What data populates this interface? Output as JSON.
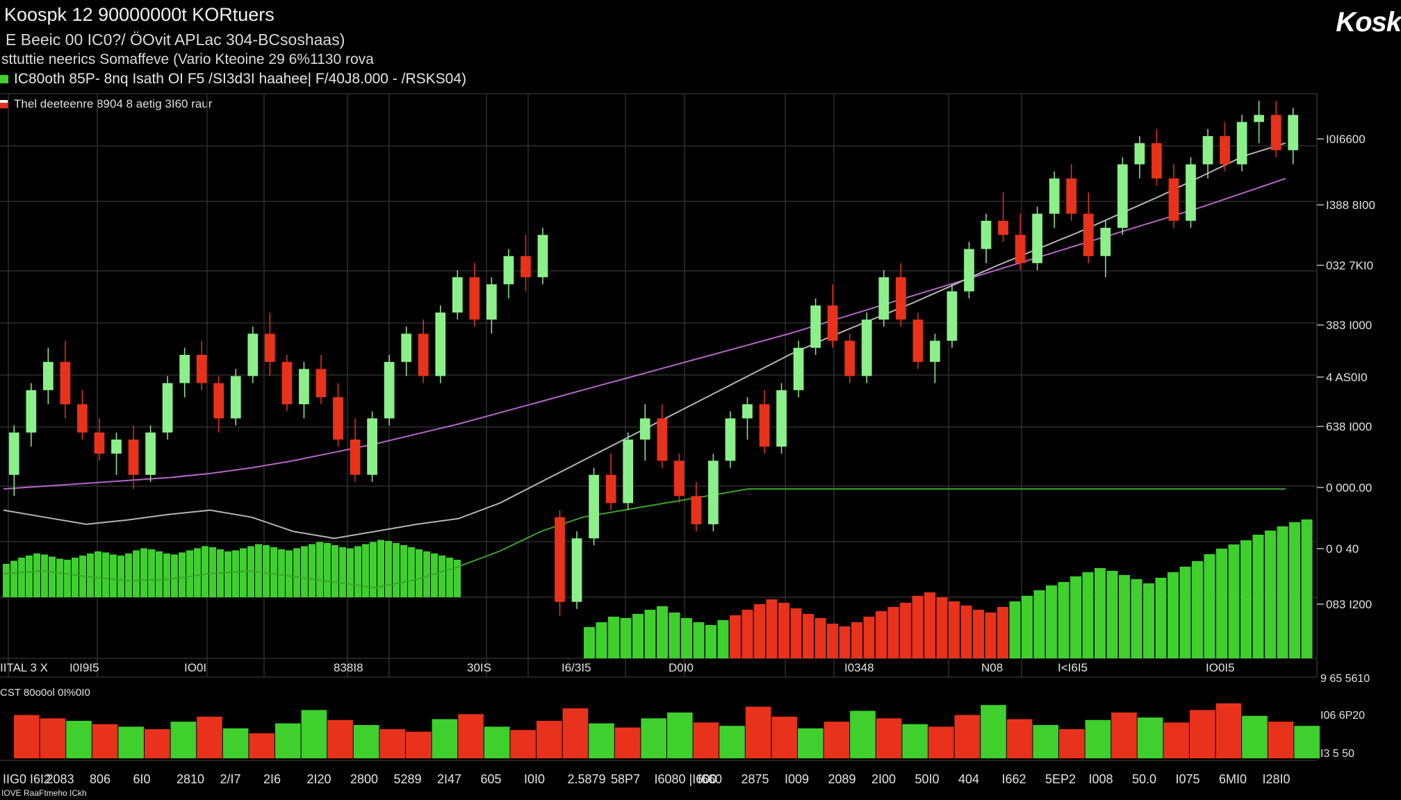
{
  "header": {
    "title": "Koospk 12  90000000t KORtuers",
    "subtitle1": "E Beeic 00 IC0?/ ÖOvit  APLac  304-BCsoshaas)",
    "subtitle2": "sttuttie  neerics  Somaffeve  (Vario  Kteoine  29 6%1130 rova",
    "legend_main": "IC80oth  85P-  8nq  Isath  OI  F5  /SI3d3I  haahee|  F/40J8.000 - /RSKS04)",
    "legend_secondary": "Thel deeteenre 8904 8 aetig 3I60 raur",
    "brand": "Kosk"
  },
  "colors": {
    "background": "#000000",
    "up": "#3fd02e",
    "up_light": "#8cf08a",
    "down": "#e8321c",
    "grid": "#2e2e2e",
    "ma_purple": "#b567c8",
    "ma_grey": "#b5b5b5",
    "ma_green": "#3aa52a"
  },
  "chart_data": [
    {
      "type": "candlestick",
      "title": "",
      "y_ticks_right": [
        "I0I6600",
        "I388 8I00",
        "032 7KI0",
        "383 I000",
        "4 AS0I0",
        "638 I000",
        "0 000.00",
        "0 0 40",
        "083 I200"
      ],
      "x_ticks": [
        "IITAL 3 X",
        "I0I9I5",
        "IO0I",
        "838I8",
        "30IS",
        "I6/3I5",
        "D0I0",
        "I0348",
        "N08",
        "I<I6I5",
        "IO0I5"
      ],
      "candles": [
        {
          "o": 8300,
          "h": 8650,
          "l": 8150,
          "c": 8600
        },
        {
          "o": 8600,
          "h": 8950,
          "l": 8500,
          "c": 8900
        },
        {
          "o": 8900,
          "h": 9200,
          "l": 8800,
          "c": 9100
        },
        {
          "o": 9100,
          "h": 9250,
          "l": 8700,
          "c": 8800
        },
        {
          "o": 8800,
          "h": 8900,
          "l": 8550,
          "c": 8600
        },
        {
          "o": 8600,
          "h": 8700,
          "l": 8400,
          "c": 8450
        },
        {
          "o": 8450,
          "h": 8600,
          "l": 8300,
          "c": 8550
        },
        {
          "o": 8550,
          "h": 8650,
          "l": 8200,
          "c": 8300
        },
        {
          "o": 8300,
          "h": 8650,
          "l": 8250,
          "c": 8600
        },
        {
          "o": 8600,
          "h": 9000,
          "l": 8550,
          "c": 8950
        },
        {
          "o": 8950,
          "h": 9200,
          "l": 8850,
          "c": 9150
        },
        {
          "o": 9150,
          "h": 9250,
          "l": 8900,
          "c": 8950
        },
        {
          "o": 8950,
          "h": 9000,
          "l": 8600,
          "c": 8700
        },
        {
          "o": 8700,
          "h": 9050,
          "l": 8650,
          "c": 9000
        },
        {
          "o": 9000,
          "h": 9350,
          "l": 8950,
          "c": 9300
        },
        {
          "o": 9300,
          "h": 9450,
          "l": 9000,
          "c": 9100
        },
        {
          "o": 9100,
          "h": 9150,
          "l": 8750,
          "c": 8800
        },
        {
          "o": 8800,
          "h": 9100,
          "l": 8700,
          "c": 9050
        },
        {
          "o": 9050,
          "h": 9150,
          "l": 8800,
          "c": 8850
        },
        {
          "o": 8850,
          "h": 8950,
          "l": 8500,
          "c": 8550
        },
        {
          "o": 8550,
          "h": 8700,
          "l": 8250,
          "c": 8300
        },
        {
          "o": 8300,
          "h": 8750,
          "l": 8250,
          "c": 8700
        },
        {
          "o": 8700,
          "h": 9150,
          "l": 8650,
          "c": 9100
        },
        {
          "o": 9100,
          "h": 9350,
          "l": 9000,
          "c": 9300
        },
        {
          "o": 9300,
          "h": 9400,
          "l": 8950,
          "c": 9000
        },
        {
          "o": 9000,
          "h": 9500,
          "l": 8950,
          "c": 9450
        },
        {
          "o": 9450,
          "h": 9750,
          "l": 9400,
          "c": 9700
        },
        {
          "o": 9700,
          "h": 9800,
          "l": 9350,
          "c": 9400
        },
        {
          "o": 9400,
          "h": 9700,
          "l": 9300,
          "c": 9650
        },
        {
          "o": 9650,
          "h": 9900,
          "l": 9550,
          "c": 9850
        },
        {
          "o": 9850,
          "h": 10000,
          "l": 9600,
          "c": 9700
        },
        {
          "o": 9700,
          "h": 10050,
          "l": 9650,
          "c": 10000
        },
        {
          "o": 8000,
          "h": 8050,
          "l": 7300,
          "c": 7400
        },
        {
          "o": 7400,
          "h": 7900,
          "l": 7350,
          "c": 7850
        },
        {
          "o": 7850,
          "h": 8350,
          "l": 7800,
          "c": 8300
        },
        {
          "o": 8300,
          "h": 8450,
          "l": 8050,
          "c": 8100
        },
        {
          "o": 8100,
          "h": 8600,
          "l": 8050,
          "c": 8550
        },
        {
          "o": 8550,
          "h": 8800,
          "l": 8400,
          "c": 8700
        },
        {
          "o": 8700,
          "h": 8800,
          "l": 8350,
          "c": 8400
        },
        {
          "o": 8400,
          "h": 8450,
          "l": 8100,
          "c": 8150
        },
        {
          "o": 8150,
          "h": 8250,
          "l": 7900,
          "c": 7950
        },
        {
          "o": 7950,
          "h": 8450,
          "l": 7900,
          "c": 8400
        },
        {
          "o": 8400,
          "h": 8750,
          "l": 8350,
          "c": 8700
        },
        {
          "o": 8700,
          "h": 8850,
          "l": 8550,
          "c": 8800
        },
        {
          "o": 8800,
          "h": 8900,
          "l": 8450,
          "c": 8500
        },
        {
          "o": 8500,
          "h": 8950,
          "l": 8450,
          "c": 8900
        },
        {
          "o": 8900,
          "h": 9250,
          "l": 8850,
          "c": 9200
        },
        {
          "o": 9200,
          "h": 9550,
          "l": 9150,
          "c": 9500
        },
        {
          "o": 9500,
          "h": 9650,
          "l": 9200,
          "c": 9250
        },
        {
          "o": 9250,
          "h": 9300,
          "l": 8950,
          "c": 9000
        },
        {
          "o": 9000,
          "h": 9450,
          "l": 8950,
          "c": 9400
        },
        {
          "o": 9400,
          "h": 9750,
          "l": 9350,
          "c": 9700
        },
        {
          "o": 9700,
          "h": 9800,
          "l": 9350,
          "c": 9400
        },
        {
          "o": 9400,
          "h": 9450,
          "l": 9050,
          "c": 9100
        },
        {
          "o": 9100,
          "h": 9300,
          "l": 8950,
          "c": 9250
        },
        {
          "o": 9250,
          "h": 9650,
          "l": 9200,
          "c": 9600
        },
        {
          "o": 9600,
          "h": 9950,
          "l": 9550,
          "c": 9900
        },
        {
          "o": 9900,
          "h": 10150,
          "l": 9800,
          "c": 10100
        },
        {
          "o": 10100,
          "h": 10300,
          "l": 9950,
          "c": 10000
        },
        {
          "o": 10000,
          "h": 10150,
          "l": 9750,
          "c": 9800
        },
        {
          "o": 9800,
          "h": 10200,
          "l": 9750,
          "c": 10150
        },
        {
          "o": 10150,
          "h": 10450,
          "l": 10050,
          "c": 10400
        },
        {
          "o": 10400,
          "h": 10500,
          "l": 10100,
          "c": 10150
        },
        {
          "o": 10150,
          "h": 10300,
          "l": 9800,
          "c": 9850
        },
        {
          "o": 9850,
          "h": 10100,
          "l": 9700,
          "c": 10050
        },
        {
          "o": 10050,
          "h": 10550,
          "l": 10000,
          "c": 10500
        },
        {
          "o": 10500,
          "h": 10700,
          "l": 10400,
          "c": 10650
        },
        {
          "o": 10650,
          "h": 10750,
          "l": 10350,
          "c": 10400
        },
        {
          "o": 10400,
          "h": 10500,
          "l": 10050,
          "c": 10100
        },
        {
          "o": 10100,
          "h": 10550,
          "l": 10050,
          "c": 10500
        },
        {
          "o": 10500,
          "h": 10750,
          "l": 10400,
          "c": 10700
        },
        {
          "o": 10700,
          "h": 10800,
          "l": 10450,
          "c": 10500
        },
        {
          "o": 10500,
          "h": 10850,
          "l": 10450,
          "c": 10800
        },
        {
          "o": 10800,
          "h": 10950,
          "l": 10650,
          "c": 10850
        },
        {
          "o": 10850,
          "h": 10950,
          "l": 10550,
          "c": 10600
        },
        {
          "o": 10600,
          "h": 10900,
          "l": 10500,
          "c": 10850
        }
      ],
      "moving_averages": [
        {
          "color_key": "ma_purple",
          "values": [
            8200,
            8220,
            8240,
            8260,
            8280,
            8310,
            8350,
            8400,
            8460,
            8520,
            8590,
            8660,
            8740,
            8820,
            8900,
            8980,
            9060,
            9140,
            9220,
            9300,
            9390,
            9480,
            9570,
            9660,
            9750,
            9840,
            9930,
            10020,
            10110,
            10200,
            10300,
            10400
          ]
        },
        {
          "color_key": "ma_grey",
          "values": [
            8050,
            8000,
            7950,
            7980,
            8020,
            8050,
            8000,
            7900,
            7850,
            7900,
            7950,
            7990,
            8100,
            8250,
            8400,
            8550,
            8700,
            8850,
            9000,
            9150,
            9280,
            9400,
            9520,
            9650,
            9780,
            9900,
            10020,
            10150,
            10280,
            10420,
            10560,
            10650
          ]
        },
        {
          "color_key": "ma_green",
          "values": [
            7600,
            7620,
            7580,
            7550,
            7560,
            7600,
            7620,
            7580,
            7540,
            7500,
            7560,
            7650,
            7760,
            7900,
            8000,
            8050,
            8100,
            8150,
            8200,
            8200,
            8200,
            8200,
            8200,
            8200,
            8200,
            8200,
            8200,
            8200,
            8200,
            8200,
            8200,
            8200
          ]
        }
      ],
      "upper_volume": [
        32,
        35,
        38,
        40,
        42,
        41,
        39,
        37,
        36,
        38,
        40,
        42,
        44,
        43,
        41,
        40,
        42,
        45,
        47,
        46,
        44,
        42,
        41,
        43,
        45,
        47,
        49,
        48,
        46,
        44,
        45,
        47,
        49,
        51,
        50,
        48,
        46,
        45,
        47,
        49,
        51,
        53,
        52,
        50,
        48,
        47,
        49,
        51,
        53,
        55,
        54,
        52,
        50,
        48,
        46,
        44,
        42,
        40,
        38,
        36
      ],
      "lower_volume_panel": [
        {
          "v": 52,
          "up": false
        },
        {
          "v": 48,
          "up": false
        },
        {
          "v": 45,
          "up": true
        },
        {
          "v": 41,
          "up": false
        },
        {
          "v": 38,
          "up": true
        },
        {
          "v": 35,
          "up": false
        },
        {
          "v": 44,
          "up": true
        },
        {
          "v": 50,
          "up": false
        },
        {
          "v": 36,
          "up": true
        },
        {
          "v": 30,
          "up": false
        },
        {
          "v": 42,
          "up": true
        },
        {
          "v": 58,
          "up": true
        },
        {
          "v": 46,
          "up": false
        },
        {
          "v": 40,
          "up": true
        },
        {
          "v": 35,
          "up": false
        },
        {
          "v": 32,
          "up": false
        },
        {
          "v": 47,
          "up": true
        },
        {
          "v": 53,
          "up": false
        },
        {
          "v": 38,
          "up": true
        },
        {
          "v": 34,
          "up": false
        },
        {
          "v": 45,
          "up": false
        },
        {
          "v": 60,
          "up": false
        },
        {
          "v": 42,
          "up": true
        },
        {
          "v": 37,
          "up": false
        },
        {
          "v": 48,
          "up": true
        },
        {
          "v": 55,
          "up": true
        },
        {
          "v": 43,
          "up": false
        },
        {
          "v": 39,
          "up": true
        },
        {
          "v": 62,
          "up": false
        },
        {
          "v": 50,
          "up": false
        },
        {
          "v": 36,
          "up": true
        },
        {
          "v": 44,
          "up": false
        },
        {
          "v": 57,
          "up": true
        },
        {
          "v": 48,
          "up": false
        },
        {
          "v": 41,
          "up": true
        },
        {
          "v": 38,
          "up": false
        },
        {
          "v": 52,
          "up": false
        },
        {
          "v": 64,
          "up": true
        },
        {
          "v": 47,
          "up": false
        },
        {
          "v": 40,
          "up": true
        },
        {
          "v": 35,
          "up": false
        },
        {
          "v": 46,
          "up": true
        },
        {
          "v": 55,
          "up": false
        },
        {
          "v": 49,
          "up": true
        },
        {
          "v": 43,
          "up": false
        },
        {
          "v": 58,
          "up": false
        },
        {
          "v": 66,
          "up": false
        },
        {
          "v": 51,
          "up": true
        },
        {
          "v": 44,
          "up": false
        },
        {
          "v": 39,
          "up": true
        }
      ],
      "lower_panel_label": "CST 80o0ol 0I%0I0",
      "lower_panel_y_ticks": [
        "9 65 5610",
        "I06 6P20",
        "I3 5 50"
      ],
      "bottom_x_ticks": [
        "IIG0  I6I2",
        "2083",
        "806",
        "6I0",
        "2810",
        "2/I7",
        "2I6",
        "2I20",
        "2800",
        "5289",
        "2I47",
        "605",
        "I0I0",
        "2.5879",
        "58P7",
        "I6080 |I600",
        "I660",
        "2875",
        "I009",
        "2089",
        "2I00",
        "50I0",
        "404",
        "I662",
        "5EP2",
        "I008",
        "50.0",
        "I075",
        "6MI0",
        "I28I0"
      ],
      "footer_note": "IOVE RaaFtmeho ICkh"
    }
  ]
}
